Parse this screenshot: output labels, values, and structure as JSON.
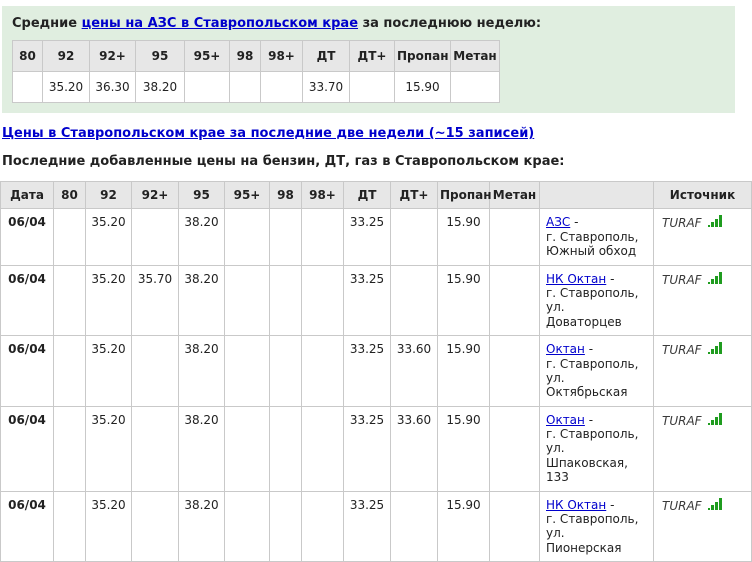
{
  "colors": {
    "link_blue": "#0000cc",
    "signal_green": "#1f9c1f",
    "summary_bg": "#e0eee0",
    "header_bg": "#e7e7e7",
    "border": "#c9c9c9",
    "text": "#222222"
  },
  "summary": {
    "title_prefix": "Средние",
    "title_link": "цены на АЗС в Ставропольском крае",
    "title_suffix": "за последнюю неделю:",
    "columns": [
      "80",
      "92",
      "92+",
      "95",
      "95+",
      "98",
      "98+",
      "ДТ",
      "ДТ+",
      "Пропан",
      "Метан"
    ],
    "values": [
      "",
      "35.20",
      "36.30",
      "38.20",
      "",
      "",
      "",
      "33.70",
      "",
      "15.90",
      ""
    ]
  },
  "two_weeks_link": "Цены в Ставропольском крае за последние две недели (~15 записей)",
  "section_title": "Последние добавленные цены на бензин, ДТ, газ в Ставропольском крае:",
  "table": {
    "columns": [
      "Дата",
      "80",
      "92",
      "92+",
      "95",
      "95+",
      "98",
      "98+",
      "ДТ",
      "ДТ+",
      "Пропан",
      "Метан",
      "",
      "Источник"
    ],
    "station_dash": " -",
    "rows": [
      {
        "date": "06/04",
        "values": [
          "",
          "35.20",
          "",
          "38.20",
          "",
          "",
          "",
          "33.25",
          "",
          "15.90",
          ""
        ],
        "station": "АЗС",
        "address": "г. Ставрополь,\nЮжный обход",
        "source": "TURAF"
      },
      {
        "date": "06/04",
        "values": [
          "",
          "35.20",
          "35.70",
          "38.20",
          "",
          "",
          "",
          "33.25",
          "",
          "15.90",
          ""
        ],
        "station": "НК Октан",
        "address": "г. Ставрополь,\nул.\nДоваторцев",
        "source": "TURAF"
      },
      {
        "date": "06/04",
        "values": [
          "",
          "35.20",
          "",
          "38.20",
          "",
          "",
          "",
          "33.25",
          "33.60",
          "15.90",
          ""
        ],
        "station": "Октан",
        "address": "г. Ставрополь,\nул.\nОктябрьская",
        "source": "TURAF"
      },
      {
        "date": "06/04",
        "values": [
          "",
          "35.20",
          "",
          "38.20",
          "",
          "",
          "",
          "33.25",
          "33.60",
          "15.90",
          ""
        ],
        "station": "Октан",
        "address": "г. Ставрополь,\nул.\nШпаковская,\n133",
        "source": "TURAF"
      },
      {
        "date": "06/04",
        "values": [
          "",
          "35.20",
          "",
          "38.20",
          "",
          "",
          "",
          "33.25",
          "",
          "15.90",
          ""
        ],
        "station": "НК Октан",
        "address": "г. Ставрополь,\nул.\nПионерская",
        "source": "TURAF"
      }
    ]
  }
}
